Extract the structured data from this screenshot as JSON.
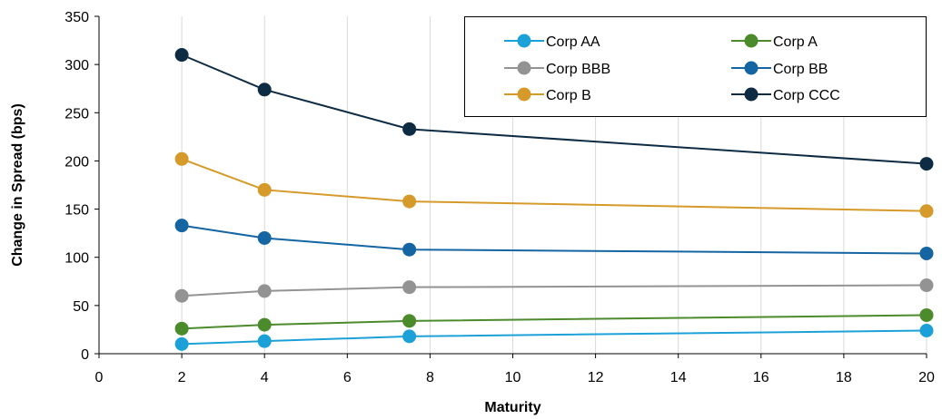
{
  "chart_data": {
    "type": "line",
    "title": "",
    "xlabel": "Maturity",
    "ylabel": "Change in Spread (bps)",
    "xlim": [
      0,
      20
    ],
    "ylim": [
      0,
      350
    ],
    "xticks": [
      0,
      2,
      4,
      6,
      8,
      10,
      12,
      14,
      16,
      18,
      20
    ],
    "yticks": [
      0,
      50,
      100,
      150,
      200,
      250,
      300,
      350
    ],
    "grid": "vertical",
    "legend_position": "top-right",
    "x": [
      2,
      4,
      7.5,
      20
    ],
    "series": [
      {
        "name": "Corp AA",
        "color": "#1BA1D8",
        "values": [
          10,
          13,
          18,
          24
        ]
      },
      {
        "name": "Corp A",
        "color": "#4B8B2C",
        "values": [
          26,
          30,
          34,
          40
        ]
      },
      {
        "name": "Corp BBB",
        "color": "#939393",
        "values": [
          60,
          65,
          69,
          71
        ]
      },
      {
        "name": "Corp BB",
        "color": "#1565A3",
        "values": [
          133,
          120,
          108,
          104
        ]
      },
      {
        "name": "Corp B",
        "color": "#D69A2A",
        "values": [
          202,
          170,
          158,
          148
        ]
      },
      {
        "name": "Corp CCC",
        "color": "#0E2B44",
        "values": [
          310,
          274,
          233,
          197
        ]
      }
    ]
  }
}
